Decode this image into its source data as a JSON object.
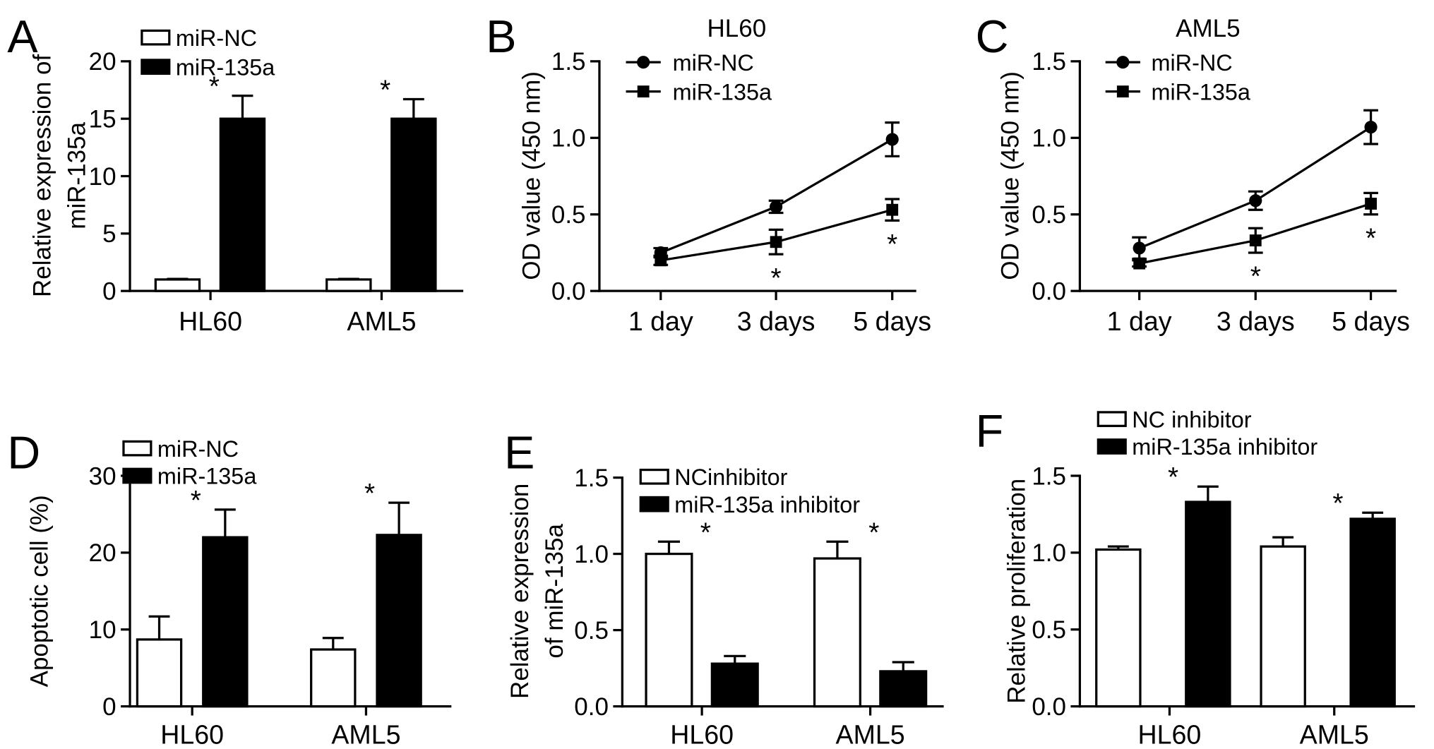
{
  "chart_data": [
    {
      "panel_label": "A",
      "type": "bar",
      "ylabel": [
        "Relative expression of",
        "miR-135a"
      ],
      "categories": [
        "HL60",
        "AML5"
      ],
      "ylim": [
        0,
        20
      ],
      "yticks": [
        0,
        5,
        10,
        15,
        20
      ],
      "ytick_labels": [
        "0",
        "5",
        "10",
        "15",
        "20"
      ],
      "series": [
        {
          "name": "miR-NC",
          "color": "#ffffff",
          "values": [
            1.0,
            1.0
          ],
          "error": [
            0.05,
            0.05
          ]
        },
        {
          "name": "miR-135a",
          "color": "#000000",
          "values": [
            15.0,
            15.0
          ],
          "error": [
            2.0,
            1.7
          ]
        }
      ],
      "annotations": [
        {
          "text": "*",
          "category": 0
        },
        {
          "text": "*",
          "category": 1
        }
      ],
      "legend": "top-left",
      "grid": false
    },
    {
      "panel_label": "B",
      "type": "line",
      "title": "HL60",
      "ylabel": [
        "OD value (450 nm)"
      ],
      "categories": [
        "1 day",
        "3 days",
        "5 days"
      ],
      "ylim": [
        0,
        1.5
      ],
      "yticks": [
        0,
        0.5,
        1.0,
        1.5
      ],
      "ytick_labels": [
        "0.0",
        "0.5",
        "1.0",
        "1.5"
      ],
      "series": [
        {
          "name": "miR-NC",
          "color": "#000000",
          "marker": "circle",
          "values": [
            0.25,
            0.55,
            0.99
          ],
          "error": [
            0.03,
            0.04,
            0.11
          ]
        },
        {
          "name": "miR-135a",
          "color": "#000000",
          "marker": "square",
          "values": [
            0.2,
            0.32,
            0.53
          ],
          "error": [
            0.03,
            0.08,
            0.07
          ]
        }
      ],
      "annotations": [
        {
          "text": "*",
          "category": 1,
          "series": 1
        },
        {
          "text": "*",
          "category": 2,
          "series": 1
        }
      ],
      "legend": "top-left",
      "grid": false
    },
    {
      "panel_label": "C",
      "type": "line",
      "title": "AML5",
      "ylabel": [
        "OD value (450 nm)"
      ],
      "categories": [
        "1 day",
        "3 days",
        "5 days"
      ],
      "ylim": [
        0,
        1.5
      ],
      "yticks": [
        0,
        0.5,
        1.0,
        1.5
      ],
      "ytick_labels": [
        "0.0",
        "0.5",
        "1.0",
        "1.5"
      ],
      "series": [
        {
          "name": "miR-NC",
          "color": "#000000",
          "marker": "circle",
          "values": [
            0.28,
            0.59,
            1.07
          ],
          "error": [
            0.07,
            0.06,
            0.11
          ]
        },
        {
          "name": "miR-135a",
          "color": "#000000",
          "marker": "square",
          "values": [
            0.18,
            0.33,
            0.57
          ],
          "error": [
            0.02,
            0.08,
            0.07
          ]
        }
      ],
      "annotations": [
        {
          "text": "*",
          "category": 1,
          "series": 1
        },
        {
          "text": "*",
          "category": 2,
          "series": 1
        }
      ],
      "legend": "top-left",
      "grid": false
    },
    {
      "panel_label": "D",
      "type": "bar",
      "ylabel": [
        "Apoptotic cell (%)"
      ],
      "categories": [
        "HL60",
        "AML5"
      ],
      "ylim": [
        0,
        30
      ],
      "yticks": [
        0,
        10,
        20,
        30
      ],
      "ytick_labels": [
        "0",
        "10",
        "20",
        "30"
      ],
      "series": [
        {
          "name": "miR-NC",
          "color": "#ffffff",
          "values": [
            8.7,
            7.4
          ],
          "error": [
            3.0,
            1.5
          ]
        },
        {
          "name": "miR-135a",
          "color": "#000000",
          "values": [
            22.0,
            22.3
          ],
          "error": [
            3.6,
            4.2
          ]
        }
      ],
      "annotations": [
        {
          "text": "*",
          "category": 0
        },
        {
          "text": "*",
          "category": 1
        }
      ],
      "legend": "top-left",
      "grid": false
    },
    {
      "panel_label": "E",
      "type": "bar",
      "ylabel": [
        "Relative expression",
        "of miR-135a"
      ],
      "categories": [
        "HL60",
        "AML5"
      ],
      "ylim": [
        0,
        1.5
      ],
      "yticks": [
        0,
        0.5,
        1.0,
        1.5
      ],
      "ytick_labels": [
        "0.0",
        "0.5",
        "1.0",
        "1.5"
      ],
      "series": [
        {
          "name": "NCinhibitor",
          "color": "#ffffff",
          "values": [
            1.0,
            0.97
          ],
          "error": [
            0.08,
            0.11
          ]
        },
        {
          "name": "miR-135a inhibitor",
          "color": "#000000",
          "values": [
            0.28,
            0.23
          ],
          "error": [
            0.05,
            0.06
          ]
        }
      ],
      "annotations": [
        {
          "text": "*",
          "category": 0
        },
        {
          "text": "*",
          "category": 1
        }
      ],
      "legend": "top-left",
      "grid": false
    },
    {
      "panel_label": "F",
      "type": "bar",
      "ylabel": [
        "Relative proliferation"
      ],
      "categories": [
        "HL60",
        "AML5"
      ],
      "ylim": [
        0,
        1.5
      ],
      "yticks": [
        0,
        0.5,
        1.0,
        1.5
      ],
      "ytick_labels": [
        "0.0",
        "0.5",
        "1.0",
        "1.5"
      ],
      "series": [
        {
          "name": "NC inhibitor",
          "color": "#ffffff",
          "values": [
            1.02,
            1.04
          ],
          "error": [
            0.02,
            0.06
          ]
        },
        {
          "name": "miR-135a inhibitor",
          "color": "#000000",
          "values": [
            1.33,
            1.22
          ],
          "error": [
            0.1,
            0.04
          ]
        }
      ],
      "annotations": [
        {
          "text": "*",
          "category": 0
        },
        {
          "text": "*",
          "category": 1
        }
      ],
      "legend": "top-left",
      "grid": false
    }
  ]
}
